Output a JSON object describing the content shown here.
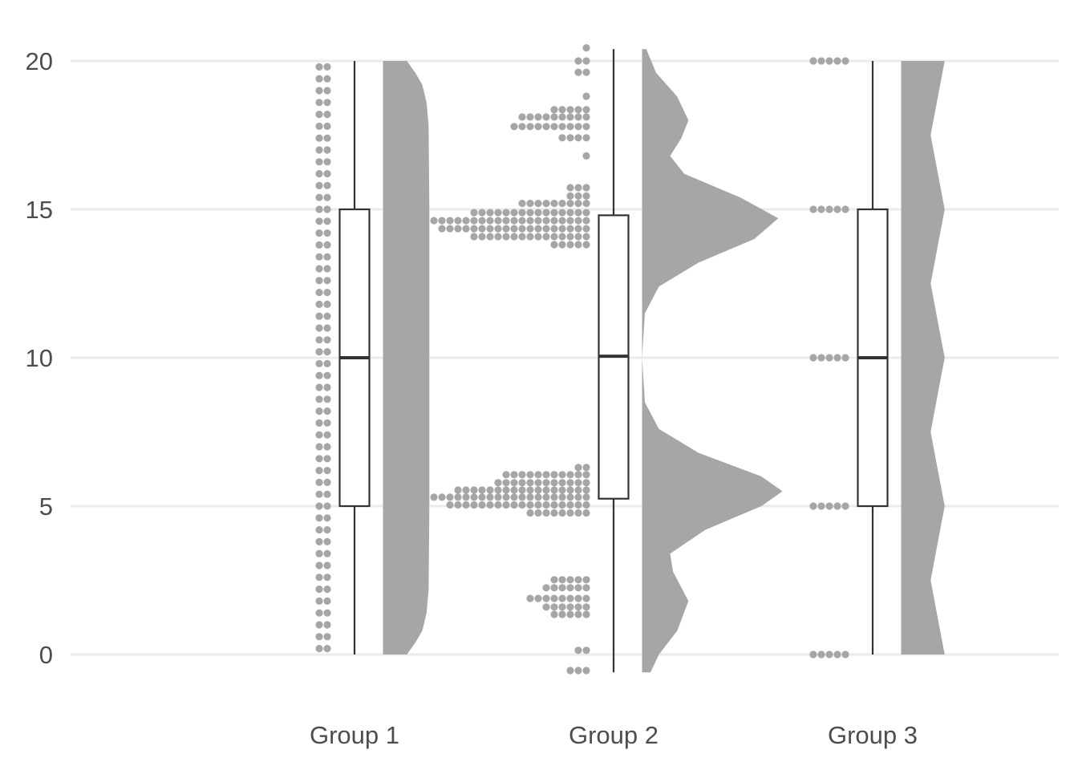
{
  "chart_data": {
    "type": "raincloud",
    "title": "",
    "xlabel": "",
    "ylabel": "",
    "ylim": [
      -0.6,
      20.4
    ],
    "yticks": [
      "0",
      "5",
      "10",
      "15",
      "20"
    ],
    "grid": true,
    "colors": {
      "dots": "#a6a6a6",
      "density": "#a6a6a6",
      "box": "#333333",
      "grid": "#ebebeb",
      "text": "#4d4d4d"
    },
    "categories": [
      "Group 1",
      "Group 2",
      "Group 3"
    ],
    "groups": [
      {
        "name": "Group 1",
        "box": {
          "min": 0,
          "q1": 5,
          "median": 10,
          "q3": 15,
          "max": 20
        },
        "dot_bins": [
          [
            0.2,
            2
          ],
          [
            0.6,
            2
          ],
          [
            1.0,
            2
          ],
          [
            1.4,
            2
          ],
          [
            1.8,
            2
          ],
          [
            2.2,
            2
          ],
          [
            2.6,
            2
          ],
          [
            3.0,
            2
          ],
          [
            3.4,
            2
          ],
          [
            3.8,
            2
          ],
          [
            4.2,
            2
          ],
          [
            4.6,
            2
          ],
          [
            5.0,
            2
          ],
          [
            5.4,
            2
          ],
          [
            5.8,
            2
          ],
          [
            6.2,
            2
          ],
          [
            6.6,
            2
          ],
          [
            7.0,
            2
          ],
          [
            7.4,
            2
          ],
          [
            7.8,
            2
          ],
          [
            8.2,
            2
          ],
          [
            8.6,
            2
          ],
          [
            9.0,
            2
          ],
          [
            9.4,
            2
          ],
          [
            9.8,
            2
          ],
          [
            10.2,
            2
          ],
          [
            10.6,
            2
          ],
          [
            11.0,
            2
          ],
          [
            11.4,
            2
          ],
          [
            11.8,
            2
          ],
          [
            12.2,
            2
          ],
          [
            12.6,
            2
          ],
          [
            13.0,
            2
          ],
          [
            13.4,
            2
          ],
          [
            13.8,
            2
          ],
          [
            14.2,
            2
          ],
          [
            14.6,
            2
          ],
          [
            15.0,
            2
          ],
          [
            15.4,
            2
          ],
          [
            15.8,
            2
          ],
          [
            16.2,
            2
          ],
          [
            16.6,
            2
          ],
          [
            17.0,
            2
          ],
          [
            17.4,
            2
          ],
          [
            17.8,
            2
          ],
          [
            18.2,
            2
          ],
          [
            18.6,
            2
          ],
          [
            19.0,
            2
          ],
          [
            19.4,
            2
          ],
          [
            19.8,
            2
          ]
        ],
        "density": [
          [
            0,
            0.17
          ],
          [
            0.4,
            0.23
          ],
          [
            0.8,
            0.28
          ],
          [
            1.4,
            0.31
          ],
          [
            2.2,
            0.325
          ],
          [
            5,
            0.33
          ],
          [
            10,
            0.33
          ],
          [
            15,
            0.33
          ],
          [
            17.8,
            0.325
          ],
          [
            18.6,
            0.31
          ],
          [
            19.2,
            0.28
          ],
          [
            19.6,
            0.23
          ],
          [
            20,
            0.17
          ]
        ]
      },
      {
        "name": "Group 2",
        "box": {
          "min": -0.6,
          "q1": 5.25,
          "median": 10.05,
          "q3": 14.8,
          "max": 20.4
        },
        "dot_bins": [
          [
            -0.54,
            3
          ],
          [
            0.14,
            2
          ],
          [
            1.35,
            5
          ],
          [
            1.6,
            6
          ],
          [
            1.89,
            8
          ],
          [
            2.25,
            6
          ],
          [
            2.52,
            5
          ],
          [
            4.77,
            8
          ],
          [
            5.04,
            18
          ],
          [
            5.3,
            20
          ],
          [
            5.54,
            17
          ],
          [
            5.79,
            12
          ],
          [
            6.06,
            11
          ],
          [
            6.3,
            2
          ],
          [
            13.81,
            5
          ],
          [
            14.08,
            15
          ],
          [
            14.35,
            19
          ],
          [
            14.62,
            20
          ],
          [
            14.89,
            15
          ],
          [
            15.2,
            9
          ],
          [
            15.45,
            3
          ],
          [
            15.73,
            3
          ],
          [
            16.8,
            1
          ],
          [
            17.41,
            4
          ],
          [
            17.79,
            10
          ],
          [
            18.11,
            9
          ],
          [
            18.36,
            5
          ],
          [
            18.81,
            1
          ],
          [
            19.62,
            2
          ],
          [
            20.0,
            2
          ],
          [
            20.44,
            1
          ]
        ],
        "density": [
          [
            -0.6,
            0.06
          ],
          [
            0,
            0.12
          ],
          [
            0.8,
            0.25
          ],
          [
            1.8,
            0.33
          ],
          [
            2.8,
            0.22
          ],
          [
            3.4,
            0.2
          ],
          [
            4.2,
            0.45
          ],
          [
            5.0,
            0.85
          ],
          [
            5.5,
            1.0
          ],
          [
            6.0,
            0.85
          ],
          [
            6.8,
            0.4
          ],
          [
            7.6,
            0.12
          ],
          [
            8.5,
            0.02
          ],
          [
            10,
            0.0
          ],
          [
            11.5,
            0.02
          ],
          [
            12.4,
            0.12
          ],
          [
            13.2,
            0.4
          ],
          [
            14.0,
            0.8
          ],
          [
            14.7,
            0.97
          ],
          [
            15.4,
            0.7
          ],
          [
            16.2,
            0.3
          ],
          [
            16.8,
            0.2
          ],
          [
            17.4,
            0.28
          ],
          [
            18.0,
            0.33
          ],
          [
            18.8,
            0.25
          ],
          [
            19.6,
            0.1
          ],
          [
            20.4,
            0.03
          ]
        ]
      },
      {
        "name": "Group 3",
        "box": {
          "min": 0,
          "q1": 5,
          "median": 10,
          "q3": 15,
          "max": 20
        },
        "dot_bins": [
          [
            0,
            5
          ],
          [
            5,
            5
          ],
          [
            10,
            5
          ],
          [
            15,
            5
          ],
          [
            20,
            5
          ]
        ],
        "density": [
          [
            0,
            0.31
          ],
          [
            1.25,
            0.26
          ],
          [
            2.5,
            0.21
          ],
          [
            3.75,
            0.26
          ],
          [
            5,
            0.31
          ],
          [
            6.25,
            0.26
          ],
          [
            7.5,
            0.21
          ],
          [
            8.75,
            0.26
          ],
          [
            10,
            0.31
          ],
          [
            11.25,
            0.26
          ],
          [
            12.5,
            0.21
          ],
          [
            13.75,
            0.26
          ],
          [
            15,
            0.31
          ],
          [
            16.25,
            0.26
          ],
          [
            17.5,
            0.21
          ],
          [
            18.75,
            0.26
          ],
          [
            20,
            0.31
          ]
        ]
      }
    ]
  }
}
